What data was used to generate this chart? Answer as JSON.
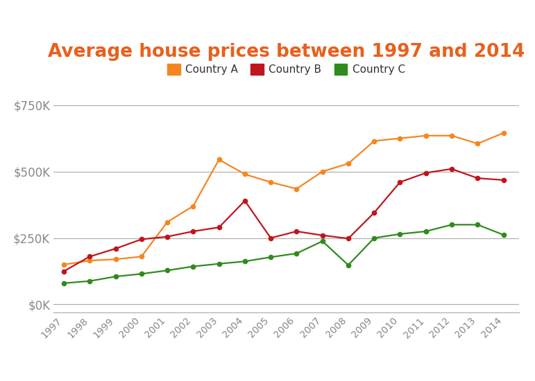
{
  "title": "Average house prices between 1997 and 2014",
  "years": [
    1997,
    1998,
    1999,
    2000,
    2001,
    2002,
    2003,
    2004,
    2005,
    2006,
    2007,
    2008,
    2009,
    2010,
    2011,
    2012,
    2013,
    2014
  ],
  "country_a": [
    150000,
    165000,
    170000,
    180000,
    310000,
    370000,
    545000,
    490000,
    460000,
    435000,
    500000,
    530000,
    615000,
    625000,
    635000,
    635000,
    605000,
    645000
  ],
  "country_b": [
    125000,
    180000,
    210000,
    245000,
    255000,
    275000,
    290000,
    390000,
    250000,
    275000,
    260000,
    248000,
    345000,
    460000,
    495000,
    510000,
    475000,
    468000
  ],
  "country_c": [
    80000,
    88000,
    105000,
    115000,
    128000,
    143000,
    153000,
    162000,
    178000,
    192000,
    238000,
    148000,
    250000,
    265000,
    275000,
    300000,
    300000,
    262000
  ],
  "color_a": "#F5851F",
  "color_b": "#C0141E",
  "color_c": "#2E8B1C",
  "title_color": "#E8601C",
  "legend_labels": [
    "Country A",
    "Country B",
    "Country C"
  ],
  "ylim": [
    -30000,
    830000
  ],
  "yticks": [
    0,
    250000,
    500000,
    750000
  ],
  "ytick_labels": [
    "$0K",
    "$250K",
    "$500K",
    "$750K"
  ],
  "background_color": "#ffffff",
  "grid_color": "#b0b0b0"
}
